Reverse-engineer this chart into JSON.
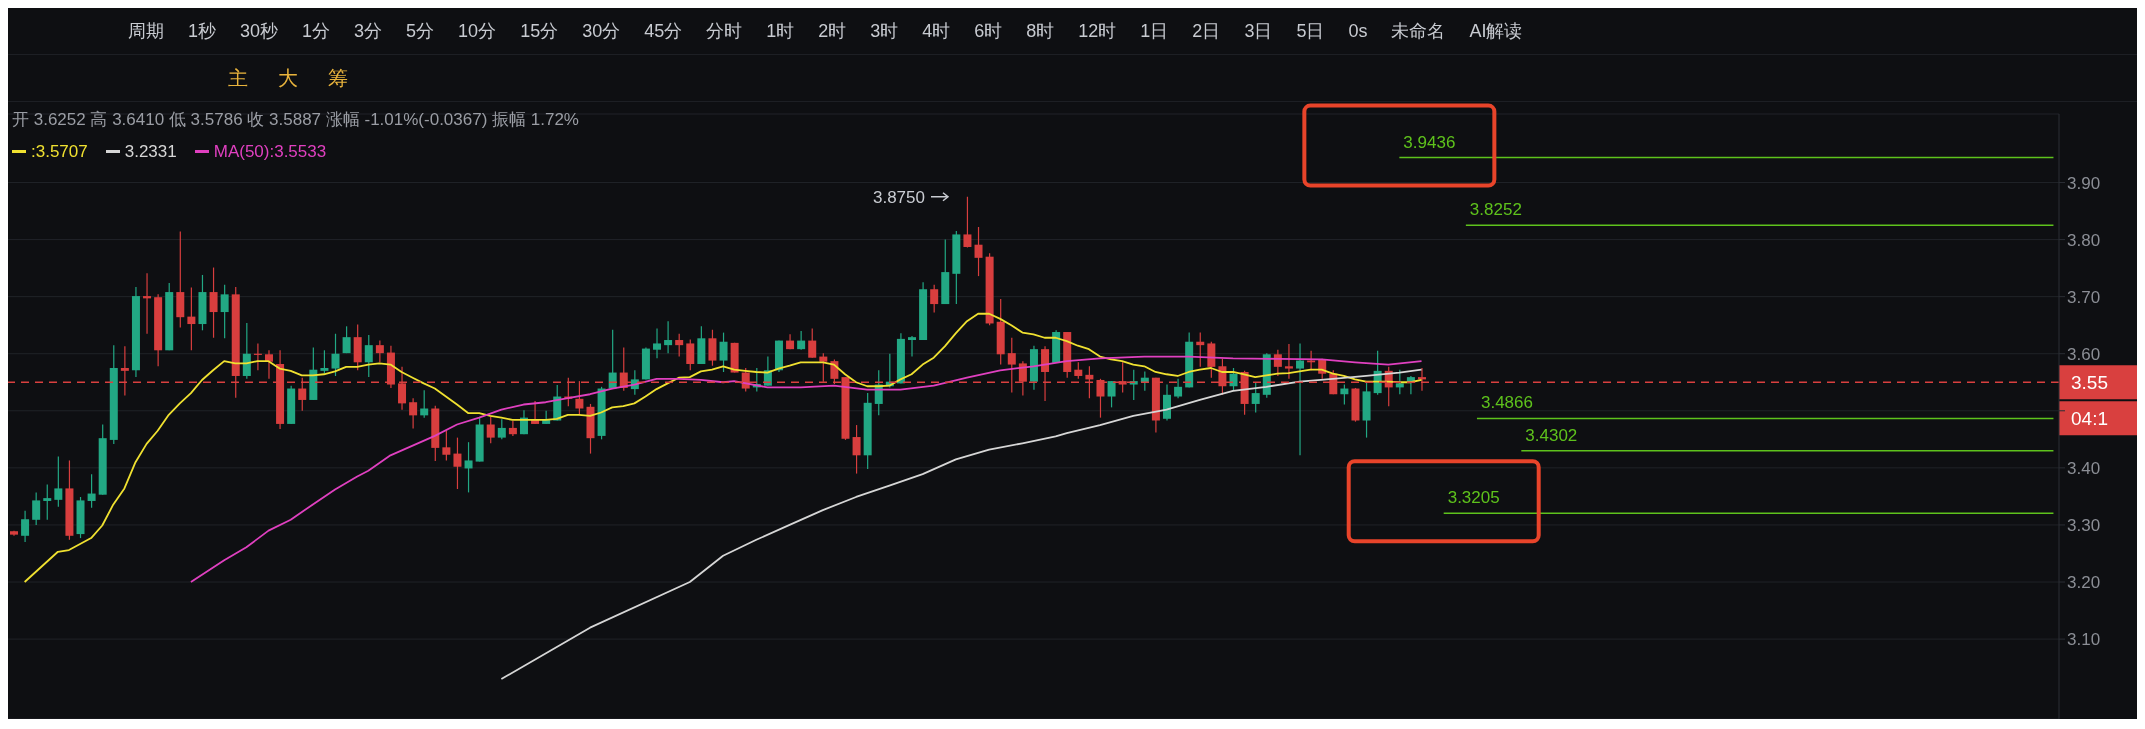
{
  "chart_data": {
    "type": "candlestick",
    "categories": [
      null,
      null,
      null,
      null,
      null,
      null,
      null,
      null,
      null,
      null,
      null,
      null,
      null,
      null,
      null,
      null,
      null,
      null,
      null,
      null,
      null,
      null,
      null,
      null,
      null,
      null,
      null,
      null,
      null,
      null,
      null,
      null,
      null,
      null,
      null,
      null,
      null,
      null,
      null,
      null,
      null,
      null,
      null,
      null,
      null,
      null,
      null,
      null,
      null,
      null,
      null,
      null,
      null,
      null,
      null,
      null,
      null,
      null,
      null,
      null,
      null,
      null,
      null,
      null,
      null,
      null,
      null,
      null,
      null,
      null,
      null,
      null,
      null,
      null,
      null,
      null,
      null,
      null,
      null,
      null,
      null,
      null,
      null,
      null,
      null,
      null,
      null,
      null,
      null,
      null,
      null,
      null,
      null,
      null,
      null,
      null,
      null,
      null,
      null,
      null,
      null,
      null,
      null,
      null,
      null,
      null,
      null,
      null,
      null,
      null,
      null,
      null,
      null,
      null,
      null,
      null,
      null,
      null,
      null,
      null,
      null,
      null,
      null,
      null,
      null,
      null,
      null,
      null
    ],
    "ohlc": [
      [
        3.289,
        3.29,
        3.281,
        3.283
      ],
      [
        3.281,
        3.325,
        3.27,
        3.31
      ],
      [
        3.309,
        3.357,
        3.3,
        3.343
      ],
      [
        3.342,
        3.371,
        3.309,
        3.347
      ],
      [
        3.344,
        3.42,
        3.332,
        3.364
      ],
      [
        3.364,
        3.413,
        3.274,
        3.281
      ],
      [
        3.284,
        3.349,
        3.277,
        3.343
      ],
      [
        3.342,
        3.389,
        3.33,
        3.355
      ],
      [
        3.353,
        3.476,
        3.353,
        3.452
      ],
      [
        3.449,
        3.615,
        3.442,
        3.575
      ],
      [
        3.575,
        3.613,
        3.527,
        3.57
      ],
      [
        3.571,
        3.717,
        3.559,
        3.701
      ],
      [
        3.701,
        3.741,
        3.635,
        3.697
      ],
      [
        3.699,
        3.704,
        3.578,
        3.606
      ],
      [
        3.606,
        3.724,
        3.606,
        3.708
      ],
      [
        3.708,
        3.814,
        3.646,
        3.664
      ],
      [
        3.665,
        3.716,
        3.606,
        3.652
      ],
      [
        3.652,
        3.738,
        3.641,
        3.708
      ],
      [
        3.708,
        3.751,
        3.628,
        3.673
      ],
      [
        3.673,
        3.721,
        3.627,
        3.704
      ],
      [
        3.704,
        3.717,
        3.523,
        3.561
      ],
      [
        3.561,
        3.654,
        3.556,
        3.6
      ],
      [
        3.6,
        3.618,
        3.571,
        3.598
      ],
      [
        3.599,
        3.606,
        3.556,
        3.586
      ],
      [
        3.582,
        3.606,
        3.468,
        3.477
      ],
      [
        3.477,
        3.544,
        3.477,
        3.539
      ],
      [
        3.539,
        3.558,
        3.5,
        3.519
      ],
      [
        3.519,
        3.611,
        3.519,
        3.572
      ],
      [
        3.57,
        3.606,
        3.565,
        3.575
      ],
      [
        3.574,
        3.635,
        3.561,
        3.6
      ],
      [
        3.601,
        3.648,
        3.601,
        3.629
      ],
      [
        3.629,
        3.651,
        3.571,
        3.585
      ],
      [
        3.585,
        3.633,
        3.559,
        3.615
      ],
      [
        3.615,
        3.623,
        3.585,
        3.601
      ],
      [
        3.602,
        3.614,
        3.54,
        3.546
      ],
      [
        3.548,
        3.577,
        3.502,
        3.513
      ],
      [
        3.515,
        3.522,
        3.469,
        3.492
      ],
      [
        3.492,
        3.536,
        3.488,
        3.504
      ],
      [
        3.504,
        3.509,
        3.412,
        3.435
      ],
      [
        3.436,
        3.465,
        3.413,
        3.423
      ],
      [
        3.425,
        3.453,
        3.363,
        3.402
      ],
      [
        3.399,
        3.445,
        3.357,
        3.413
      ],
      [
        3.411,
        3.488,
        3.411,
        3.476
      ],
      [
        3.476,
        3.489,
        3.443,
        3.453
      ],
      [
        3.453,
        3.485,
        3.45,
        3.47
      ],
      [
        3.47,
        3.482,
        3.456,
        3.459
      ],
      [
        3.459,
        3.501,
        3.459,
        3.488
      ],
      [
        3.485,
        3.517,
        3.477,
        3.477
      ],
      [
        3.477,
        3.5,
        3.477,
        3.485
      ],
      [
        3.483,
        3.545,
        3.483,
        3.525
      ],
      [
        3.525,
        3.558,
        3.508,
        3.521
      ],
      [
        3.521,
        3.552,
        3.493,
        3.504
      ],
      [
        3.507,
        3.512,
        3.425,
        3.452
      ],
      [
        3.456,
        3.542,
        3.45,
        3.539
      ],
      [
        3.539,
        3.642,
        3.538,
        3.567
      ],
      [
        3.567,
        3.611,
        3.535,
        3.54
      ],
      [
        3.538,
        3.571,
        3.528,
        3.555
      ],
      [
        3.555,
        3.611,
        3.555,
        3.609
      ],
      [
        3.607,
        3.644,
        3.592,
        3.618
      ],
      [
        3.615,
        3.657,
        3.601,
        3.624
      ],
      [
        3.624,
        3.635,
        3.595,
        3.615
      ],
      [
        3.618,
        3.625,
        3.571,
        3.582
      ],
      [
        3.582,
        3.648,
        3.582,
        3.627
      ],
      [
        3.627,
        3.642,
        3.579,
        3.588
      ],
      [
        3.588,
        3.637,
        3.568,
        3.621
      ],
      [
        3.619,
        3.619,
        3.567,
        3.567
      ],
      [
        3.567,
        3.575,
        3.534,
        3.539
      ],
      [
        3.541,
        3.575,
        3.534,
        3.547
      ],
      [
        3.544,
        3.595,
        3.544,
        3.571
      ],
      [
        3.571,
        3.623,
        3.568,
        3.623
      ],
      [
        3.623,
        3.634,
        3.608,
        3.608
      ],
      [
        3.608,
        3.64,
        3.607,
        3.623
      ],
      [
        3.623,
        3.644,
        3.593,
        3.593
      ],
      [
        3.595,
        3.601,
        3.551,
        3.586
      ],
      [
        3.587,
        3.59,
        3.547,
        3.556
      ],
      [
        3.559,
        3.559,
        3.449,
        3.451
      ],
      [
        3.454,
        3.475,
        3.39,
        3.422
      ],
      [
        3.422,
        3.531,
        3.398,
        3.514
      ],
      [
        3.512,
        3.571,
        3.492,
        3.546
      ],
      [
        3.543,
        3.6,
        3.541,
        3.551
      ],
      [
        3.548,
        3.636,
        3.548,
        3.626
      ],
      [
        3.624,
        3.631,
        3.595,
        3.629
      ],
      [
        3.624,
        3.725,
        3.624,
        3.713
      ],
      [
        3.713,
        3.721,
        3.672,
        3.687
      ],
      [
        3.687,
        3.8,
        3.687,
        3.743
      ],
      [
        3.74,
        3.815,
        3.687,
        3.809
      ],
      [
        3.809,
        3.875,
        3.786,
        3.787
      ],
      [
        3.791,
        3.822,
        3.736,
        3.768
      ],
      [
        3.77,
        3.776,
        3.65,
        3.653
      ],
      [
        3.656,
        3.696,
        3.581,
        3.599
      ],
      [
        3.601,
        3.628,
        3.532,
        3.581
      ],
      [
        3.583,
        3.587,
        3.527,
        3.551
      ],
      [
        3.551,
        3.614,
        3.537,
        3.608
      ],
      [
        3.608,
        3.613,
        3.517,
        3.568
      ],
      [
        3.584,
        3.641,
        3.584,
        3.638
      ],
      [
        3.638,
        3.638,
        3.558,
        3.568
      ],
      [
        3.572,
        3.585,
        3.556,
        3.561
      ],
      [
        3.563,
        3.578,
        3.522,
        3.555
      ],
      [
        3.554,
        3.556,
        3.488,
        3.525
      ],
      [
        3.525,
        3.552,
        3.506,
        3.552
      ],
      [
        3.552,
        3.585,
        3.532,
        3.546
      ],
      [
        3.546,
        3.572,
        3.519,
        3.552
      ],
      [
        3.55,
        3.569,
        3.535,
        3.558
      ],
      [
        3.558,
        3.558,
        3.462,
        3.483
      ],
      [
        3.486,
        3.546,
        3.483,
        3.528
      ],
      [
        3.525,
        3.556,
        3.522,
        3.542
      ],
      [
        3.541,
        3.637,
        3.541,
        3.621
      ],
      [
        3.621,
        3.637,
        3.577,
        3.615
      ],
      [
        3.618,
        3.621,
        3.558,
        3.577
      ],
      [
        3.578,
        3.591,
        3.528,
        3.543
      ],
      [
        3.543,
        3.575,
        3.535,
        3.565
      ],
      [
        3.568,
        3.57,
        3.493,
        3.512
      ],
      [
        3.512,
        3.549,
        3.497,
        3.531
      ],
      [
        3.528,
        3.601,
        3.523,
        3.599
      ],
      [
        3.599,
        3.607,
        3.561,
        3.577
      ],
      [
        3.578,
        3.617,
        3.556,
        3.574
      ],
      [
        3.574,
        3.618,
        3.422,
        3.588
      ],
      [
        3.588,
        3.605,
        3.571,
        3.585
      ],
      [
        3.59,
        3.591,
        3.556,
        3.565
      ],
      [
        3.565,
        3.571,
        3.529,
        3.529
      ],
      [
        3.529,
        3.546,
        3.511,
        3.539
      ],
      [
        3.539,
        3.54,
        3.481,
        3.483
      ],
      [
        3.483,
        3.552,
        3.453,
        3.534
      ],
      [
        3.531,
        3.605,
        3.528,
        3.57
      ],
      [
        3.57,
        3.577,
        3.508,
        3.541
      ],
      [
        3.541,
        3.572,
        3.529,
        3.548
      ],
      [
        3.551,
        3.561,
        3.529,
        3.559
      ],
      [
        3.559,
        3.575,
        3.535,
        3.555
      ]
    ],
    "series": [
      {
        "type": "line",
        "name": ":3.5707",
        "color": "#f0e130",
        "values": [
          null,
          3.2,
          null,
          null,
          3.253,
          3.256,
          null,
          3.277,
          3.299,
          3.336,
          3.364,
          3.41,
          3.442,
          3.465,
          3.493,
          3.513,
          3.531,
          3.554,
          3.571,
          3.587,
          3.583,
          3.583,
          3.587,
          3.587,
          3.574,
          3.57,
          3.562,
          3.562,
          3.564,
          3.569,
          3.577,
          3.577,
          3.581,
          3.583,
          3.581,
          3.568,
          3.558,
          3.548,
          3.539,
          3.525,
          3.511,
          3.496,
          3.496,
          3.491,
          3.488,
          3.484,
          3.484,
          3.484,
          3.484,
          3.486,
          3.493,
          3.493,
          3.491,
          3.497,
          3.506,
          3.508,
          3.513,
          3.525,
          3.538,
          3.548,
          3.558,
          3.559,
          3.569,
          3.572,
          3.578,
          3.572,
          3.57,
          3.568,
          3.567,
          3.574,
          3.579,
          3.585,
          3.585,
          3.585,
          3.581,
          3.564,
          3.55,
          3.543,
          3.543,
          3.544,
          3.555,
          3.564,
          3.581,
          3.593,
          3.613,
          3.636,
          3.657,
          3.67,
          3.67,
          3.661,
          3.65,
          3.637,
          3.634,
          3.628,
          3.628,
          3.622,
          3.614,
          3.608,
          3.595,
          3.59,
          3.587,
          3.581,
          3.578,
          3.568,
          3.564,
          3.561,
          3.568,
          3.572,
          3.575,
          3.568,
          3.568,
          3.564,
          3.559,
          3.562,
          3.565,
          3.566,
          3.569,
          3.572,
          3.572,
          3.565,
          3.561,
          3.555,
          3.551,
          3.551,
          3.551,
          3.55,
          3.55,
          3.554
        ]
      },
      {
        "type": "line",
        "name": "3.2331",
        "color": "#d6d6d6",
        "values": [
          null,
          null,
          null,
          null,
          null,
          null,
          null,
          null,
          null,
          null,
          null,
          null,
          null,
          null,
          null,
          null,
          null,
          null,
          null,
          null,
          null,
          null,
          null,
          null,
          null,
          null,
          null,
          null,
          null,
          null,
          null,
          null,
          null,
          null,
          null,
          null,
          null,
          null,
          null,
          null,
          null,
          null,
          null,
          null,
          3.03,
          null,
          null,
          null,
          null,
          null,
          null,
          null,
          3.12,
          null,
          null,
          null,
          null,
          null,
          null,
          null,
          null,
          3.2,
          null,
          null,
          3.246,
          null,
          null,
          3.274,
          null,
          null,
          3.3,
          null,
          null,
          3.326,
          null,
          null,
          3.349,
          null,
          null,
          3.369,
          null,
          null,
          3.389,
          null,
          null,
          3.415,
          null,
          null,
          3.432,
          null,
          null,
          3.443,
          null,
          null,
          3.455,
          3.461,
          null,
          null,
          3.475,
          null,
          null,
          3.491,
          null,
          null,
          3.502,
          null,
          null,
          3.519,
          null,
          null,
          3.535,
          null,
          null,
          3.542,
          null,
          null,
          3.551,
          null,
          null,
          3.556,
          null,
          null,
          3.561,
          null,
          null,
          3.567,
          null,
          3.572
        ]
      },
      {
        "type": "line",
        "name": "MA(50):3.5533",
        "color": "#e040c0",
        "values": [
          null,
          null,
          null,
          null,
          null,
          null,
          null,
          null,
          null,
          null,
          null,
          null,
          null,
          null,
          null,
          null,
          3.2,
          null,
          null,
          3.238,
          null,
          3.261,
          null,
          3.29,
          null,
          3.309,
          null,
          3.336,
          null,
          3.362,
          null,
          3.385,
          3.395,
          null,
          3.422,
          null,
          3.439,
          null,
          3.456,
          null,
          3.476,
          null,
          3.488,
          null,
          3.502,
          null,
          3.511,
          null,
          3.515,
          null,
          3.522,
          null,
          3.529,
          null,
          3.539,
          null,
          3.546,
          null,
          3.556,
          null,
          3.556,
          null,
          3.554,
          null,
          3.55,
          3.552,
          null,
          null,
          3.541,
          null,
          null,
          3.541,
          null,
          null,
          3.544,
          null,
          null,
          3.537,
          null,
          null,
          3.537,
          null,
          null,
          3.544,
          null,
          null,
          3.558,
          null,
          null,
          3.571,
          null,
          null,
          3.578,
          null,
          null,
          3.587,
          null,
          null,
          3.592,
          null,
          null,
          null,
          3.595,
          null,
          null,
          null,
          3.595,
          null,
          null,
          null,
          3.592,
          null,
          null,
          null,
          3.591,
          null,
          null,
          null,
          3.59,
          null,
          null,
          3.585,
          null,
          null,
          3.581,
          null,
          null,
          3.587
        ]
      }
    ],
    "ylim": [
      2.96,
      4.02
    ],
    "yticks": [
      {
        "value": 3.1,
        "label": "3.10"
      },
      {
        "value": 3.2,
        "label": "3.20"
      },
      {
        "value": 3.3,
        "label": "3.30"
      },
      {
        "value": 3.4,
        "label": "3.40"
      },
      {
        "value": 3.5,
        "label": null
      },
      {
        "value": 3.6,
        "label": "3.60"
      },
      {
        "value": 3.7,
        "label": "3.70"
      },
      {
        "value": 3.8,
        "label": "3.80"
      },
      {
        "value": 3.9,
        "label": "3.90"
      }
    ],
    "tick_labels": "y",
    "grid": "y",
    "legend": "top left",
    "ref_lines": [
      {
        "axis": "y",
        "value": 3.9436,
        "label": "3.9436",
        "color": "#5ec21c"
      },
      {
        "axis": "y",
        "value": 3.8252,
        "label": "3.8252",
        "color": "#5ec21c"
      },
      {
        "axis": "y",
        "value": 3.4866,
        "label": "3.4866",
        "color": "#5ec21c"
      },
      {
        "axis": "y",
        "value": 3.4302,
        "label": "3.4302",
        "color": "#5ec21c"
      },
      {
        "axis": "y",
        "value": 3.3205,
        "label": "3.3205",
        "color": "#5ec21c"
      },
      {
        "axis": "y",
        "value": 3.55,
        "label": "3.55",
        "color": "#d9403f",
        "line_style": "dashed"
      }
    ],
    "annotations": [
      "开 3.6252 高 3.6410 低 3.5786 收 3.5887 涨幅 -1.01%(-0.0367) 振幅 1.72%",
      "04:1",
      "3.8750",
      "周期",
      "1秒",
      "30秒",
      "1分",
      "3分",
      "5分",
      "10分",
      "15分",
      "30分",
      "45分",
      "分时",
      "1时",
      "2时",
      "3时",
      "4时",
      "6时",
      "8时",
      "12时",
      "1日",
      "2日",
      "3日",
      "5日",
      "0s",
      "未命名",
      "AI解读",
      "主",
      "大",
      "筹"
    ]
  }
}
